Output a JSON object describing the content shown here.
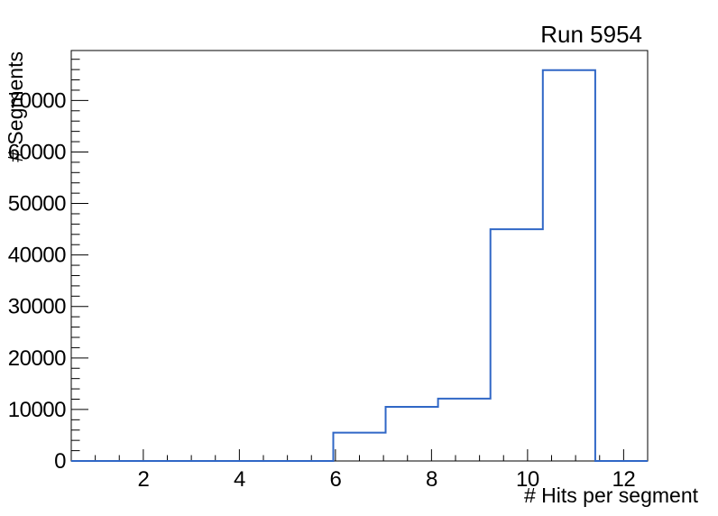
{
  "window": {
    "background_color": "#ffffff",
    "frame_color": "#000000"
  },
  "chart_data": {
    "type": "bar",
    "style": "step-histogram-outline",
    "title": "Run 5954",
    "xlabel": "# Hits per segment",
    "ylabel": "# Segments",
    "xlim": [
      0.5,
      12.5
    ],
    "ylim": [
      0,
      79700
    ],
    "grid": false,
    "legend": false,
    "line_color": "#3067c6",
    "bin_edges": [
      0.5,
      1.591,
      2.682,
      3.773,
      4.864,
      5.955,
      7.045,
      8.136,
      9.227,
      10.318,
      11.409,
      12.5
    ],
    "values": [
      0,
      0,
      0,
      0,
      0,
      5500,
      10500,
      12100,
      45000,
      75900,
      0
    ],
    "x_ticks": [
      {
        "value": 2,
        "label": "2"
      },
      {
        "value": 4,
        "label": "4"
      },
      {
        "value": 6,
        "label": "6"
      },
      {
        "value": 8,
        "label": "8"
      },
      {
        "value": 10,
        "label": "10"
      },
      {
        "value": 12,
        "label": "12"
      }
    ],
    "x_minor": {
      "start": 1,
      "end": 12,
      "step": 0.5
    },
    "y_ticks": [
      {
        "value": 0,
        "label": "0"
      },
      {
        "value": 10000,
        "label": "10000"
      },
      {
        "value": 20000,
        "label": "20000"
      },
      {
        "value": 30000,
        "label": "30000"
      },
      {
        "value": 40000,
        "label": "40000"
      },
      {
        "value": 50000,
        "label": "50000"
      },
      {
        "value": 60000,
        "label": "60000"
      },
      {
        "value": 70000,
        "label": "70000"
      }
    ],
    "y_minor": {
      "start": 2000,
      "end": 78000,
      "step": 2000
    }
  }
}
